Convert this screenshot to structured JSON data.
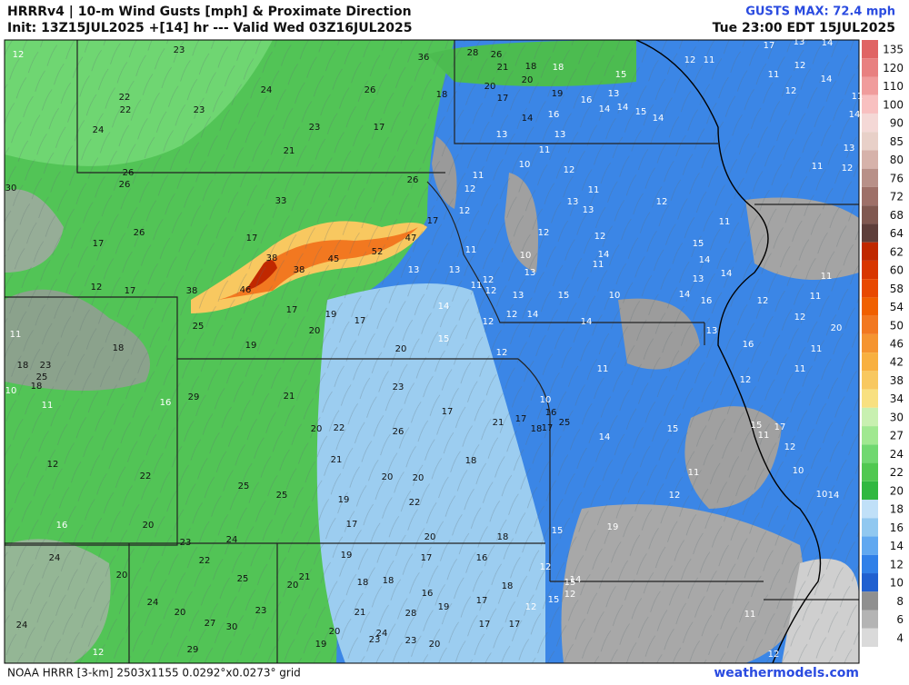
{
  "header": {
    "title": "HRRRv4 | 10-m Wind Gusts [mph] & Proximate Direction",
    "init": "Init: 13Z15JUL2025 +[14] hr --- Valid Wed 03Z16JUL2025",
    "max": "GUSTS MAX: 72.4 mph",
    "valid_local": "Tue 23:00 EDT 15JUL2025"
  },
  "footer": {
    "grid": "NOAA HRRR [3-km] 2503x1155 0.0292°x0.0273° grid",
    "site": "weathermodels.com"
  },
  "colorbar": [
    {
      "value": 135,
      "color": "#e06464"
    },
    {
      "value": 120,
      "color": "#e88080"
    },
    {
      "value": 110,
      "color": "#f09c9c"
    },
    {
      "value": 100,
      "color": "#f8c0c0"
    },
    {
      "value": 90,
      "color": "#f4d8d6"
    },
    {
      "value": 85,
      "color": "#e8d0c8"
    },
    {
      "value": 80,
      "color": "#d6b2aa"
    },
    {
      "value": 76,
      "color": "#b89088"
    },
    {
      "value": 72,
      "color": "#9e7068"
    },
    {
      "value": 68,
      "color": "#805850"
    },
    {
      "value": 64,
      "color": "#5e3e3a"
    },
    {
      "value": 62,
      "color": "#c02800"
    },
    {
      "value": 60,
      "color": "#d83600"
    },
    {
      "value": 58,
      "color": "#e84800"
    },
    {
      "value": 54,
      "color": "#f06000"
    },
    {
      "value": 50,
      "color": "#f27820"
    },
    {
      "value": 46,
      "color": "#f59430"
    },
    {
      "value": 42,
      "color": "#f8b040"
    },
    {
      "value": 38,
      "color": "#f8c860"
    },
    {
      "value": 34,
      "color": "#f8e080"
    },
    {
      "value": 30,
      "color": "#c8f0b0"
    },
    {
      "value": 27,
      "color": "#a0e890"
    },
    {
      "value": 24,
      "color": "#70d870"
    },
    {
      "value": 22,
      "color": "#50c850"
    },
    {
      "value": 20,
      "color": "#30b840"
    },
    {
      "value": 18,
      "color": "#c0e0f8"
    },
    {
      "value": 16,
      "color": "#90c8f0"
    },
    {
      "value": 14,
      "color": "#60a8f0"
    },
    {
      "value": 12,
      "color": "#3080e8"
    },
    {
      "value": 10,
      "color": "#2060d0"
    },
    {
      "value": 8,
      "color": "#909090"
    },
    {
      "value": 6,
      "color": "#b4b4b4"
    },
    {
      "value": 4,
      "color": "#dadada"
    }
  ],
  "map_labels": [
    23,
    24,
    26,
    22,
    22,
    23,
    24,
    23,
    17,
    21,
    26,
    26,
    30,
    26,
    17,
    33,
    17,
    38,
    38,
    45,
    52,
    47,
    26,
    17,
    36,
    28,
    26,
    21,
    18,
    20,
    20,
    17,
    18,
    19,
    38,
    46,
    12,
    17,
    25,
    17,
    19,
    20,
    17,
    20,
    19,
    18,
    18,
    23,
    25,
    18,
    29,
    21,
    23,
    17,
    20,
    22,
    26,
    21,
    18,
    12,
    22,
    25,
    25,
    20,
    20,
    22,
    19,
    17,
    20,
    18,
    20,
    23,
    24,
    22,
    19,
    17,
    16,
    25,
    21,
    20,
    18,
    18,
    18,
    16,
    20,
    24,
    20,
    23,
    28,
    19,
    21,
    17,
    27,
    30,
    20,
    24,
    23,
    19,
    23,
    20,
    29,
    24,
    24,
    17,
    17,
    25,
    18,
    17,
    21,
    17,
    16,
    14,
    16,
    13,
    11,
    13,
    10,
    12,
    13,
    12,
    11,
    14,
    14,
    15,
    14,
    13,
    16,
    15,
    12,
    11,
    17,
    13,
    14,
    11,
    12,
    12,
    14,
    11,
    14,
    13,
    12,
    11,
    11,
    12,
    13,
    11,
    12,
    12,
    12,
    14,
    11,
    10,
    11,
    13,
    13,
    13,
    12,
    12,
    11,
    13,
    15,
    10,
    15,
    14,
    13,
    14,
    16,
    14,
    12,
    11,
    11,
    12,
    20,
    14,
    15,
    12,
    12,
    14,
    12,
    14,
    13,
    16,
    11,
    11,
    12,
    11,
    10,
    14,
    15,
    15,
    17,
    11,
    12,
    11,
    12,
    10,
    10,
    14,
    19,
    15,
    12,
    15,
    14,
    12,
    15,
    12,
    11,
    12,
    10,
    11,
    16,
    16,
    12,
    11,
    12,
    18
  ]
}
